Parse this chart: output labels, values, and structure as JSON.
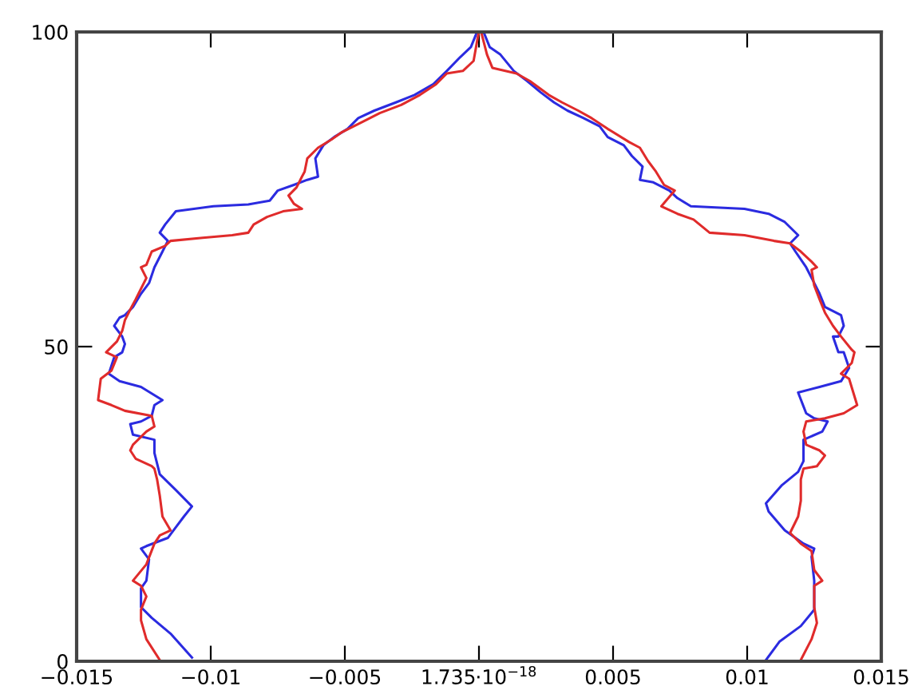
{
  "chart_data": {
    "type": "line",
    "xlim": [
      -0.015,
      0.015
    ],
    "ylim": [
      0,
      100
    ],
    "xticks": [
      -0.015,
      -0.01,
      -0.005,
      {
        "value": 1.735e-18,
        "label": "1.735·10$^{−18}$"
      },
      0.005,
      0.01,
      0.015
    ],
    "yticks": [
      0,
      50,
      100
    ],
    "grid": false,
    "marker": "none",
    "line_style": "solid",
    "series": [
      {
        "color": "#2b2be0",
        "x": [
          -0.0001,
          -0.0003,
          -0.0007,
          -0.0012,
          -0.0017,
          -0.0024,
          -0.0031,
          -0.0039,
          -0.0045,
          -0.0049,
          -0.0054,
          -0.0058,
          -0.0061,
          -0.006,
          -0.0064,
          -0.0069,
          -0.0075,
          -0.0078,
          -0.0086,
          -0.0099,
          -0.0113,
          -0.0117,
          -0.0119,
          -0.0116,
          -0.0118,
          -0.0121,
          -0.0123,
          -0.0126,
          -0.0129,
          -0.0132,
          -0.0134,
          -0.0136,
          -0.0133,
          -0.0132,
          -0.0133,
          -0.0136,
          -0.0138,
          -0.0134,
          -0.0126,
          -0.0118,
          -0.0121,
          -0.0122,
          -0.0126,
          -0.013,
          -0.0129,
          -0.0121,
          -0.0121,
          -0.0119,
          -0.0113,
          -0.0107,
          -0.011,
          -0.0113,
          -0.0116,
          -0.0124,
          -0.0126,
          -0.0123,
          -0.0124,
          -0.0126,
          -0.0126,
          -0.0122,
          -0.0115,
          -0.0107
        ],
        "values": [
          99.7,
          97.6,
          96,
          93.8,
          91.7,
          90,
          88.8,
          87.5,
          86.3,
          84.6,
          83.3,
          82,
          79.9,
          77,
          76.5,
          75.7,
          74.8,
          73.2,
          72.6,
          72.3,
          71.5,
          69.4,
          68.1,
          66.8,
          65.1,
          62.6,
          60.1,
          58.4,
          56.3,
          55,
          54.6,
          53.3,
          51.6,
          50.4,
          49.1,
          48.3,
          45.7,
          44.5,
          43.6,
          41.5,
          40.7,
          39,
          38.1,
          37.7,
          36,
          35.2,
          33.1,
          29.7,
          27.2,
          24.6,
          23,
          21.3,
          19.6,
          18.3,
          17.9,
          16.2,
          12.8,
          11.6,
          8.6,
          6.9,
          4.4,
          0.6
        ]
      },
      {
        "color": "#2b2be0",
        "x": [
          0.0002,
          0.0004,
          0.0008,
          0.0013,
          0.0018,
          0.0023,
          0.0028,
          0.0033,
          0.0039,
          0.0045,
          0.0048,
          0.0054,
          0.0057,
          0.0061,
          0.006,
          0.0065,
          0.0071,
          0.0074,
          0.0079,
          0.0099,
          0.0108,
          0.0114,
          0.0119,
          0.0116,
          0.0118,
          0.0122,
          0.0125,
          0.0127,
          0.0129,
          0.0135,
          0.0136,
          0.0134,
          0.0132,
          0.0134,
          0.0136,
          0.0138,
          0.0135,
          0.0127,
          0.0119,
          0.0122,
          0.0125,
          0.013,
          0.0128,
          0.0121,
          0.0121,
          0.0121,
          0.0119,
          0.0113,
          0.0107,
          0.0108,
          0.0114,
          0.0121,
          0.0125,
          0.0124,
          0.0125,
          0.0125,
          0.0125,
          0.012,
          0.0112,
          0.0107
        ],
        "values": [
          99.7,
          97.6,
          96.4,
          93.8,
          92.2,
          90.4,
          88.8,
          87.5,
          86.3,
          85,
          83.3,
          82,
          80.3,
          78.6,
          76.5,
          76.1,
          74.8,
          73.6,
          72.3,
          71.9,
          71.1,
          69.8,
          67.7,
          66.4,
          65.1,
          62.6,
          60.1,
          58.4,
          56.3,
          55,
          53.3,
          51.6,
          51.6,
          49.1,
          49.1,
          46.6,
          44.5,
          43.6,
          42.7,
          39.4,
          38.6,
          38.1,
          36.5,
          35.2,
          33.9,
          31.8,
          30.1,
          28,
          25.1,
          23.8,
          20.8,
          18.7,
          17.9,
          16.6,
          12.8,
          11.6,
          8.2,
          5.6,
          3.1,
          0.2
        ]
      },
      {
        "color": "#e02b2b",
        "x": [
          -2e-05,
          -0.0002,
          -0.0006,
          -0.0012,
          -0.0016,
          -0.0022,
          -0.0029,
          -0.0037,
          -0.0043,
          -0.0051,
          -0.0055,
          -0.006,
          -0.0064,
          -0.0065,
          -0.0066,
          -0.0068,
          -0.0071,
          -0.0069,
          -0.0066,
          -0.0073,
          -0.0079,
          -0.0084,
          -0.0086,
          -0.0092,
          -0.0103,
          -0.0115,
          -0.0117,
          -0.0122,
          -0.0124,
          -0.0126,
          -0.0124,
          -0.0126,
          -0.0128,
          -0.013,
          -0.0132,
          -0.0133,
          -0.0135,
          -0.0139,
          -0.0135,
          -0.0137,
          -0.0141,
          -0.0142,
          -0.0137,
          -0.0132,
          -0.0122,
          -0.0121,
          -0.0124,
          -0.0129,
          -0.013,
          -0.0128,
          -0.0122,
          -0.0121,
          -0.012,
          -0.0119,
          -0.0118,
          -0.0115,
          -0.0119,
          -0.0121,
          -0.0124,
          -0.0129,
          -0.0126,
          -0.0124,
          -0.0126,
          -0.0126,
          -0.0124,
          -0.0119
        ],
        "values": [
          99.7,
          95.4,
          93.8,
          93.4,
          91.7,
          90,
          88.4,
          87.1,
          85.8,
          84.1,
          82.9,
          81.6,
          79.9,
          77.8,
          77,
          75.3,
          74,
          72.7,
          71.9,
          71.5,
          70.6,
          69.4,
          68.1,
          67.7,
          67.3,
          66.8,
          66,
          65.1,
          63,
          62.6,
          60.9,
          59.2,
          57.5,
          55.9,
          54.2,
          52.5,
          50.8,
          49.1,
          48.3,
          46.2,
          44.9,
          41.5,
          40.7,
          39.8,
          39,
          37.3,
          36.5,
          34.4,
          33.5,
          32.2,
          31,
          30.6,
          28.9,
          26.3,
          23,
          20.8,
          20,
          18.7,
          15.4,
          12.8,
          12,
          10.3,
          8.2,
          6.5,
          3.5,
          0.2
        ]
      },
      {
        "color": "#e02b2b",
        "x": [
          0.0001,
          0.0003,
          0.0005,
          0.0014,
          0.0019,
          0.0026,
          0.0031,
          0.0037,
          0.0042,
          0.0048,
          0.0056,
          0.006,
          0.0063,
          0.0066,
          0.0069,
          0.0073,
          0.0068,
          0.0074,
          0.008,
          0.0086,
          0.0099,
          0.011,
          0.0116,
          0.012,
          0.0124,
          0.0126,
          0.0124,
          0.0125,
          0.0127,
          0.0129,
          0.0132,
          0.0135,
          0.0139,
          0.014,
          0.0139,
          0.0135,
          0.0138,
          0.0141,
          0.0136,
          0.0129,
          0.0122,
          0.0121,
          0.0122,
          0.0127,
          0.0129,
          0.0126,
          0.0121,
          0.012,
          0.012,
          0.0119,
          0.0116,
          0.012,
          0.0124,
          0.0125,
          0.0128,
          0.0125,
          0.0125,
          0.0126,
          0.0124,
          0.012
        ],
        "values": [
          99.7,
          96.4,
          94.3,
          93.4,
          92.2,
          90,
          88.8,
          87.5,
          86.3,
          84.6,
          82.5,
          81.6,
          79.5,
          77.8,
          75.7,
          74.8,
          72.3,
          71.1,
          70.2,
          68.1,
          67.7,
          66.8,
          66.4,
          65.1,
          63.5,
          62.6,
          62.2,
          59.7,
          57.5,
          55.4,
          53.3,
          51.6,
          49.5,
          49.1,
          47.4,
          45.7,
          44.9,
          40.7,
          39.4,
          38.6,
          38.1,
          36.5,
          34.4,
          33.5,
          32.7,
          31,
          30.6,
          28.9,
          25.5,
          23,
          20.4,
          18.7,
          17.5,
          14.5,
          12.8,
          12,
          8.6,
          6.1,
          3.5,
          0.2
        ]
      }
    ]
  }
}
